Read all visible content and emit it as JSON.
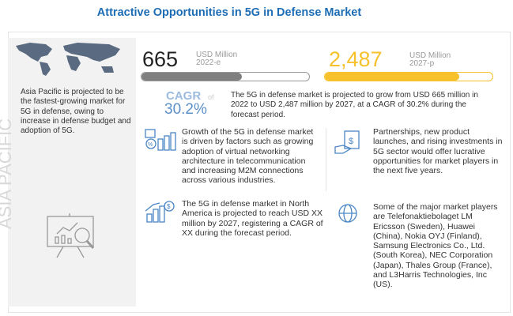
{
  "title": "Attractive Opportunities in  5G in Defense Market",
  "left": {
    "text": "Asia Pacific is projected to be the fastest-growing market for 5G in defense, owing to increase in defense budget and adoption of 5G.",
    "region_label": "ASIA PACIFIC"
  },
  "stats": {
    "value_2022": "665",
    "unit_2022": "USD Million",
    "year_2022": "2022-e",
    "progress_2022": 0.6,
    "value_2027": "2,487",
    "unit_2027": "USD Million",
    "year_2027": "2027-p",
    "progress_2027": 0.8,
    "cagr_label": "CAGR",
    "cagr_of": "of",
    "cagr_value": "30.2%",
    "summary": "The 5G in defense market is projected to grow from USD 665 million in 2022 to USD 2,487 million by 2027, at a CAGR of 30.2% during the forecast period."
  },
  "points": [
    "Growth of the 5G in defense market is driven by factors such as growing adoption of virtual networking architecture in telecommunication and increasing M2M connections across various industries.",
    "Partnerships, new product launches, and rising investments in 5G sector would offer lucrative opportunities for market players in the next five years.",
    "The 5G in defense market in North America is projected to reach USD XX million by 2027, registering a CAGR of XX during the forecast period.",
    "Some of the major market players are Telefonaktiebolaget LM Ericsson (Sweden), Huawei (China), Nokia OYJ (Finland), Samsung Electronics Co., Ltd. (South Korea), NEC Corporation (Japan), Thales Group (France), and L3Harris Technologies, Inc (US)."
  ],
  "colors": {
    "title": "#1d6db5",
    "gray_bar": "#7f7f7f",
    "yellow": "#f6c12b",
    "cagr": "#9dbbdf"
  }
}
